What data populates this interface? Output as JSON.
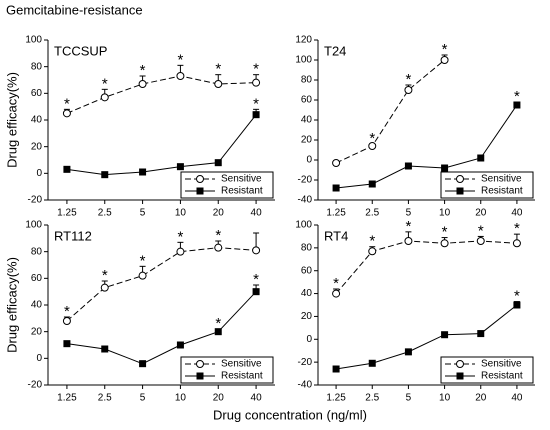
{
  "title": "Gemcitabine-resistance",
  "ylabel": "Drug efficacy(%)",
  "xlabel": "Drug concentration (ng/ml)",
  "chart_data": [
    {
      "type": "line",
      "title": "TCCSUP",
      "categories": [
        "1.25",
        "2.5",
        "5",
        "10",
        "20",
        "40"
      ],
      "ylim": [
        -20,
        100
      ],
      "yticks": [
        -20,
        0,
        20,
        40,
        60,
        80,
        100
      ],
      "legend": "lower right",
      "series": [
        {
          "name": "Sensitive",
          "color": "#000000",
          "linestyle": "dashed",
          "marker": "circle-open",
          "values": [
            45,
            57,
            67,
            73,
            67,
            68
          ],
          "errors": [
            3,
            6,
            6,
            8,
            7,
            6
          ],
          "stars": [
            "*",
            "*",
            "*",
            "*",
            "*",
            "*"
          ]
        },
        {
          "name": "Resistant",
          "color": "#000000",
          "linestyle": "solid",
          "marker": "square",
          "values": [
            3,
            -1,
            1,
            5,
            8,
            44
          ],
          "errors": [
            1,
            1,
            1,
            1,
            1,
            4
          ],
          "stars": [
            null,
            null,
            null,
            null,
            null,
            "*"
          ]
        }
      ]
    },
    {
      "type": "line",
      "title": "T24",
      "categories": [
        "1.25",
        "2.5",
        "5",
        "10",
        "20",
        "40"
      ],
      "ylim": [
        -40,
        120
      ],
      "yticks": [
        -40,
        -20,
        0,
        20,
        40,
        60,
        80,
        100,
        120
      ],
      "legend": "lower right",
      "series": [
        {
          "name": "Sensitive",
          "color": "#000000",
          "linestyle": "dashed",
          "marker": "circle-open",
          "values": [
            -3,
            14,
            70,
            100,
            null,
            null
          ],
          "errors": [
            1,
            2,
            5,
            5,
            null,
            null
          ],
          "stars": [
            null,
            "*",
            "*",
            "*",
            null,
            null
          ]
        },
        {
          "name": "Resistant",
          "color": "#000000",
          "linestyle": "solid",
          "marker": "square",
          "values": [
            -28,
            -24,
            -6,
            -8,
            2,
            55
          ],
          "errors": [
            1,
            1,
            1,
            1,
            1,
            3
          ],
          "stars": [
            null,
            null,
            null,
            null,
            null,
            "*"
          ]
        }
      ]
    },
    {
      "type": "line",
      "title": "RT112",
      "categories": [
        "1.25",
        "2.5",
        "5",
        "10",
        "20",
        "40"
      ],
      "ylim": [
        -20,
        100
      ],
      "yticks": [
        -20,
        0,
        20,
        40,
        60,
        80,
        100
      ],
      "legend": "lower right",
      "series": [
        {
          "name": "Sensitive",
          "color": "#000000",
          "linestyle": "dashed",
          "marker": "circle-open",
          "values": [
            28,
            53,
            62,
            80,
            83,
            81
          ],
          "errors": [
            3,
            5,
            7,
            7,
            5,
            13
          ],
          "stars": [
            "*",
            "*",
            "*",
            "*",
            "*",
            null
          ]
        },
        {
          "name": "Resistant",
          "color": "#000000",
          "linestyle": "solid",
          "marker": "square",
          "values": [
            11,
            7,
            -4,
            10,
            20,
            50
          ],
          "errors": [
            1,
            1,
            1,
            1,
            2,
            5
          ],
          "stars": [
            null,
            null,
            null,
            null,
            "*",
            "*"
          ]
        }
      ]
    },
    {
      "type": "line",
      "title": "RT4",
      "categories": [
        "1.25",
        "2.5",
        "5",
        "10",
        "20",
        "40"
      ],
      "ylim": [
        -40,
        100
      ],
      "yticks": [
        -40,
        -20,
        0,
        20,
        40,
        60,
        80,
        100
      ],
      "legend": "lower right",
      "series": [
        {
          "name": "Sensitive",
          "color": "#000000",
          "linestyle": "dashed",
          "marker": "circle-open",
          "values": [
            40,
            77,
            86,
            84,
            86,
            84
          ],
          "errors": [
            4,
            4,
            8,
            5,
            4,
            8
          ],
          "stars": [
            "*",
            "*",
            "*",
            "*",
            "*",
            "*"
          ]
        },
        {
          "name": "Resistant",
          "color": "#000000",
          "linestyle": "solid",
          "marker": "square",
          "values": [
            -26,
            -21,
            -11,
            4,
            5,
            30
          ],
          "errors": [
            1,
            1,
            2,
            1,
            1,
            3
          ],
          "stars": [
            null,
            null,
            null,
            null,
            null,
            "*"
          ]
        }
      ]
    }
  ]
}
